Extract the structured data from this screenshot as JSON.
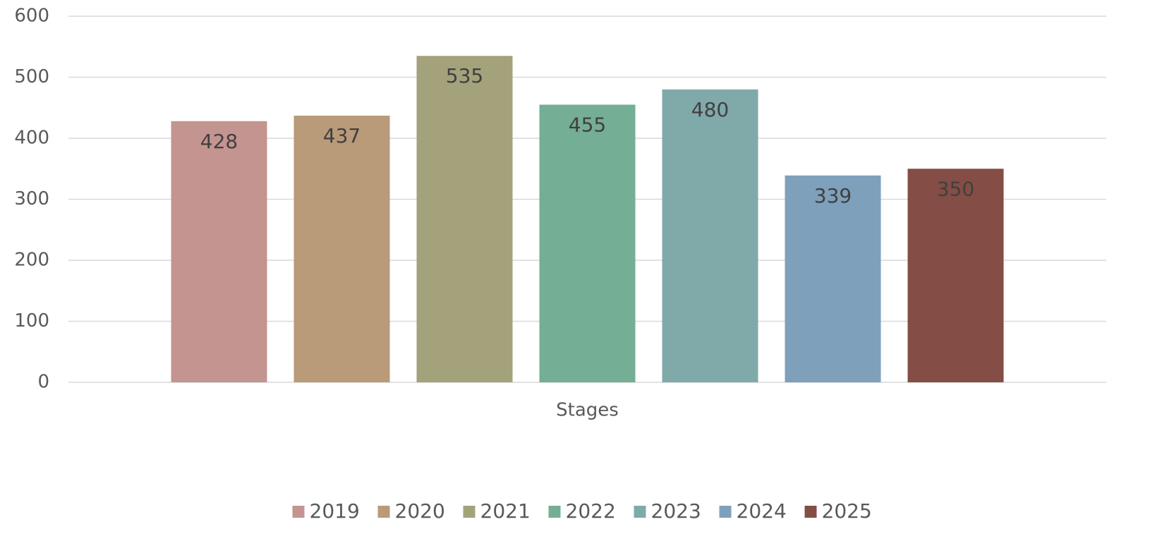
{
  "chart_data": {
    "type": "bar",
    "categories": [
      "Stages"
    ],
    "series": [
      {
        "name": "2019",
        "color": "#c49490",
        "values": [
          428
        ]
      },
      {
        "name": "2020",
        "color": "#b99a79",
        "values": [
          437
        ]
      },
      {
        "name": "2021",
        "color": "#a4a27b",
        "values": [
          535
        ]
      },
      {
        "name": "2022",
        "color": "#74ae94",
        "values": [
          455
        ]
      },
      {
        "name": "2023",
        "color": "#80a9aa",
        "values": [
          480
        ]
      },
      {
        "name": "2024",
        "color": "#7ea0bb",
        "values": [
          339
        ]
      },
      {
        "name": "2025",
        "color": "#844d45",
        "values": [
          350
        ]
      }
    ],
    "ylim": [
      0,
      600
    ],
    "yticks": [
      0,
      100,
      200,
      300,
      400,
      500,
      600
    ],
    "grid": true,
    "legend": "bottom"
  }
}
